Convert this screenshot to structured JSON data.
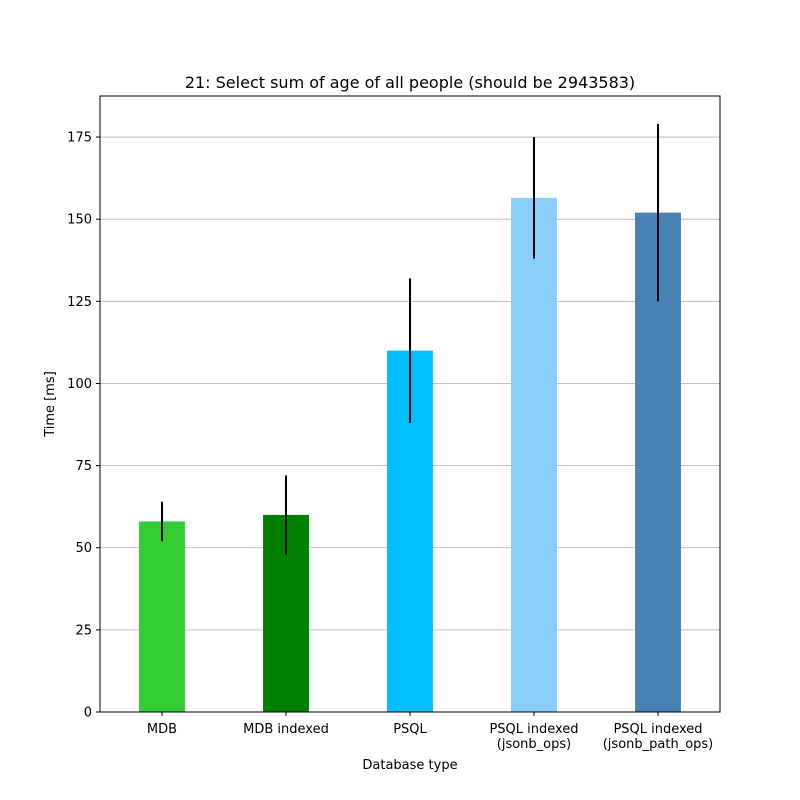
{
  "chart_data": {
    "type": "bar",
    "title": "21: Select sum of age of all people (should be 2943583)",
    "xlabel": "Database type",
    "ylabel": "Time [ms]",
    "ylim": [
      0,
      187.5
    ],
    "y_ticks": [
      0,
      25,
      50,
      75,
      100,
      125,
      150,
      175
    ],
    "grid": "y",
    "categories": [
      [
        "MDB"
      ],
      [
        "MDB indexed"
      ],
      [
        "PSQL"
      ],
      [
        "PSQL indexed",
        "(jsonb_ops)"
      ],
      [
        "PSQL indexed",
        "(jsonb_path_ops)"
      ]
    ],
    "values": [
      58,
      60,
      110,
      156.5,
      152
    ],
    "error_low": [
      52,
      48,
      88,
      138,
      125
    ],
    "error_high": [
      64,
      72,
      132,
      175,
      179
    ],
    "colors": [
      "#32cd32",
      "#008000",
      "#00bfff",
      "#87cefa",
      "#4682b4"
    ]
  }
}
